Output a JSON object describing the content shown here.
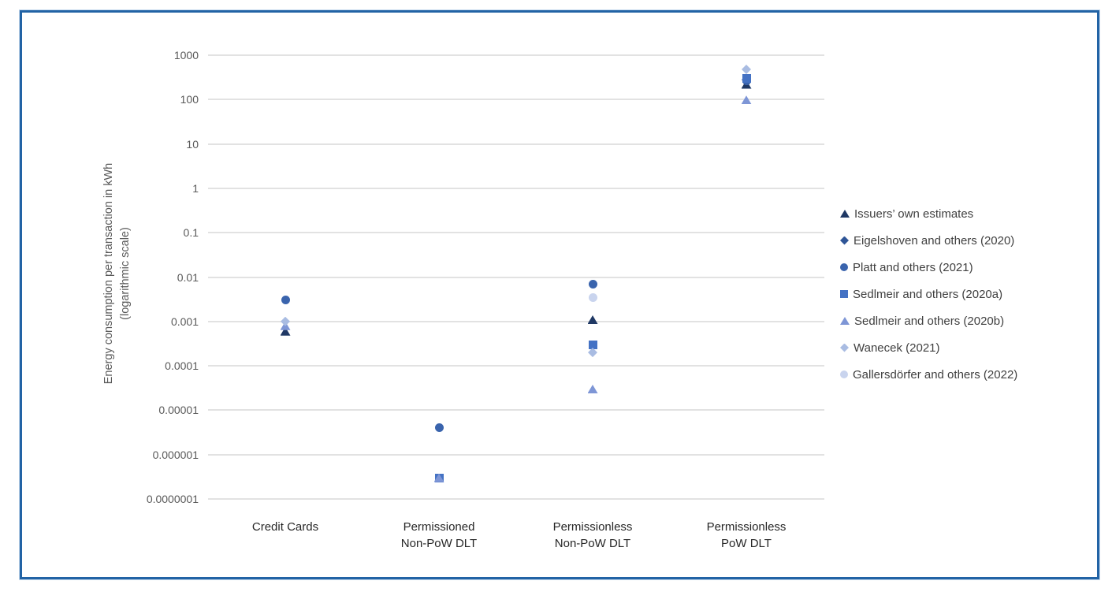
{
  "frame": {
    "border_color": "#2263A5"
  },
  "y_axis": {
    "title_line1": "Energy consumption per transaction in kWh",
    "title_line2": "(logarithmic scale)",
    "tick_labels": [
      "1000",
      "100",
      "10",
      "1",
      "0.1",
      "0.01",
      "0.001",
      "0.0001",
      "0.00001",
      "0.000001",
      "0.0000001"
    ],
    "tick_values": [
      1000,
      100,
      10,
      1,
      0.1,
      0.01,
      0.001,
      0.0001,
      1e-05,
      1e-06,
      1e-07
    ]
  },
  "chart_data": {
    "type": "scatter",
    "y_scale": "log",
    "ylim": [
      1e-07,
      1000
    ],
    "grid": true,
    "legend_position": "right",
    "title": "",
    "xlabel": "",
    "ylabel": "Energy consumption per transaction in kWh (logarithmic scale)",
    "categories": [
      "Credit Cards",
      "Permissioned Non-PoW DLT",
      "Permissionless Non-PoW DLT",
      "Permissionless PoW DLT"
    ],
    "category_label_lines": [
      [
        "Credit Cards"
      ],
      [
        "Permissioned",
        "Non-PoW DLT"
      ],
      [
        "Permissionless",
        "Non-PoW DLT"
      ],
      [
        "Permissionless",
        "PoW DLT"
      ]
    ],
    "series": [
      {
        "name": "Issuers’ own estimates",
        "marker": "triangle",
        "color": "#1F3864",
        "points": {
          "Credit Cards": 0.0006,
          "Permissionless Non-PoW DLT": 0.0011,
          "Permissionless PoW DLT": 220
        }
      },
      {
        "name": "Eigelshoven and others (2020)",
        "marker": "diamond",
        "color": "#2F5597",
        "points": {
          "Permissionless PoW DLT": 280
        }
      },
      {
        "name": "Platt and others (2021)",
        "marker": "circle",
        "color": "#3A64AD",
        "points": {
          "Credit Cards": 0.003,
          "Permissioned Non-PoW DLT": 4e-06,
          "Permissionless Non-PoW DLT": 0.007,
          "Permissionless PoW DLT": 260
        }
      },
      {
        "name": "Sedlmeir and others (2020a)",
        "marker": "square",
        "color": "#4472C4",
        "points": {
          "Permissioned Non-PoW DLT": 3e-07,
          "Permissionless Non-PoW DLT": 0.0003,
          "Permissionless PoW DLT": 300
        }
      },
      {
        "name": "Sedlmeir and others (2020b)",
        "marker": "triangle",
        "color": "#7E96D6",
        "points": {
          "Credit Cards": 0.0008,
          "Permissioned Non-PoW DLT": 3e-07,
          "Permissionless Non-PoW DLT": 3e-05,
          "Permissionless PoW DLT": 98
        }
      },
      {
        "name": "Wanecek (2021)",
        "marker": "diamond",
        "color": "#A9BCE2",
        "points": {
          "Credit Cards": 0.001,
          "Permissionless Non-PoW DLT": 0.0002,
          "Permissionless PoW DLT": 480
        }
      },
      {
        "name": "Gallersdörfer and others (2022)",
        "marker": "circle",
        "color": "#C9D4EE",
        "points": {
          "Permissionless Non-PoW DLT": 0.0034
        }
      }
    ]
  }
}
